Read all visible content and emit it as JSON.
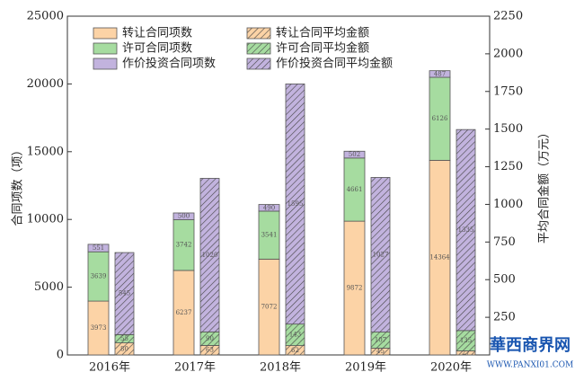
{
  "chart_data": {
    "type": "stacked-bar",
    "categories": [
      "2016年",
      "2017年",
      "2018年",
      "2019年",
      "2020年"
    ],
    "y_label": "合同项数（项）",
    "y2_label": "平均合同金额（万元）",
    "ylim": [
      0,
      25000
    ],
    "yticks": [
      0,
      5000,
      10000,
      15000,
      20000,
      25000
    ],
    "y2lim": [
      0,
      2250
    ],
    "y2ticks": [
      250,
      500,
      750,
      1000,
      1250,
      1500,
      1750,
      2000,
      2250
    ],
    "series": [
      {
        "name": "转让合同项数",
        "color": "#fcd3a6",
        "values": [
          3973,
          6237,
          7072,
          9872,
          14364
        ]
      },
      {
        "name": "许可合同项数",
        "color": "#a6dca0",
        "values": [
          3639,
          3742,
          3541,
          4661,
          6126
        ]
      },
      {
        "name": "作价投资合同项数",
        "color": "#c2b3de",
        "values": [
          551,
          500,
          490,
          502,
          487
        ]
      },
      {
        "name": "转让合同平均金额",
        "color": "#fcd3a6",
        "axis": "y2",
        "hatch": true,
        "values": [
          80,
          63,
          62,
          45,
          27
        ]
      },
      {
        "name": "许可合同平均金额",
        "color": "#a6dca0",
        "axis": "y2",
        "hatch": true,
        "values": [
          55,
          90,
          143,
          107,
          135
        ]
      },
      {
        "name": "作价投资合同平均金额",
        "color": "#c2b3de",
        "axis": "y2",
        "hatch": true,
        "values": [
          545,
          1020,
          1595,
          1027,
          1335
        ]
      }
    ]
  },
  "watermark": {
    "title": "華西商界网",
    "url": "WWW.PANXI01.COM"
  }
}
